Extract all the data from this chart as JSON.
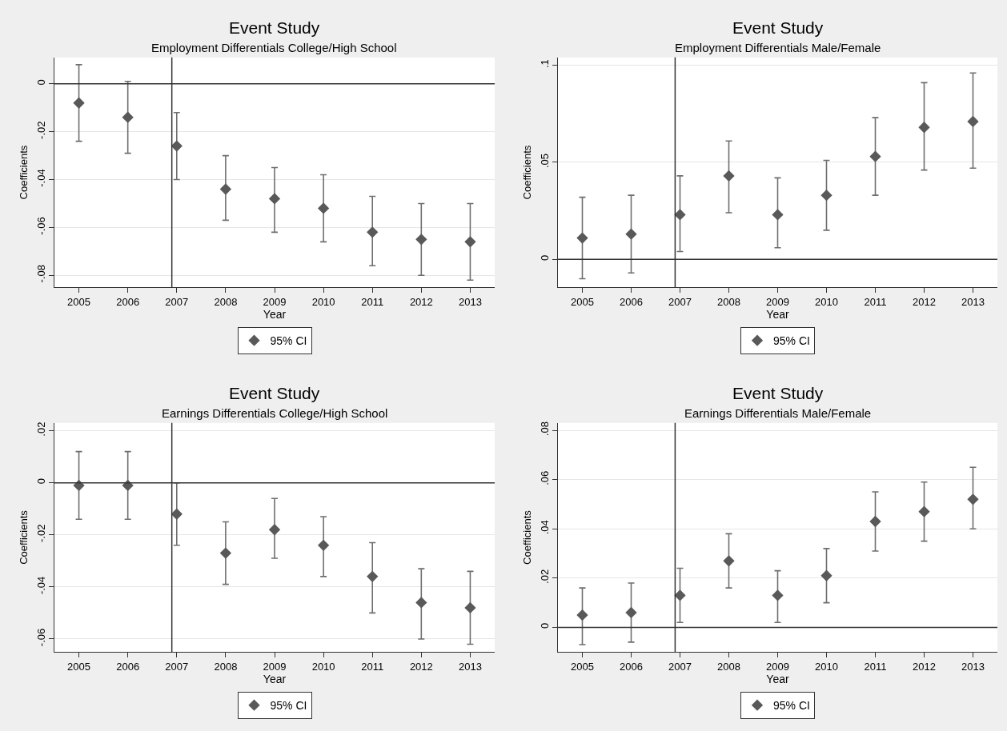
{
  "chart_data": [
    {
      "type": "scatter",
      "title": "Event Study",
      "subtitle": "Employment Differentials College/High School",
      "xlabel": "Year",
      "ylabel": "Coefficients",
      "x": [
        2005,
        2006,
        2007,
        2008,
        2009,
        2010,
        2011,
        2012,
        2013
      ],
      "xlim": [
        2004.5,
        2013.5
      ],
      "xticks": [
        2005,
        2006,
        2007,
        2008,
        2009,
        2010,
        2011,
        2012,
        2013
      ],
      "ylim": [
        -0.085,
        0.011
      ],
      "yticks": [
        {
          "value": -0.08,
          "label": "-.08"
        },
        {
          "value": -0.06,
          "label": "-.06"
        },
        {
          "value": -0.04,
          "label": "-.04"
        },
        {
          "value": -0.02,
          "label": "-.02"
        },
        0
      ],
      "series": [
        {
          "name": "95% CI",
          "color": "#595959",
          "values": [
            -0.008,
            -0.014,
            -0.026,
            -0.044,
            -0.048,
            -0.052,
            -0.062,
            -0.065,
            -0.066
          ],
          "errors": [
            [
              -0.024,
              0.008
            ],
            [
              -0.029,
              0.001
            ],
            [
              -0.04,
              -0.012
            ],
            [
              -0.057,
              -0.03
            ],
            [
              -0.062,
              -0.035
            ],
            [
              -0.066,
              -0.038
            ],
            [
              -0.076,
              -0.047
            ],
            [
              -0.08,
              -0.05
            ],
            [
              -0.082,
              -0.05
            ]
          ]
        }
      ],
      "ref_lines": [
        {
          "axis": "y",
          "value": 0
        },
        {
          "axis": "x",
          "value": 2006.9
        }
      ],
      "grid": "y",
      "legend": "bottom",
      "marker": "diamond"
    },
    {
      "type": "scatter",
      "title": "Event Study",
      "subtitle": "Employment Differentials Male/Female",
      "xlabel": "Year",
      "ylabel": "Coefficients",
      "x": [
        2005,
        2006,
        2007,
        2008,
        2009,
        2010,
        2011,
        2012,
        2013
      ],
      "xlim": [
        2004.5,
        2013.5
      ],
      "xticks": [
        2005,
        2006,
        2007,
        2008,
        2009,
        2010,
        2011,
        2012,
        2013
      ],
      "ylim": [
        -0.0144,
        0.104
      ],
      "yticks": [
        0,
        {
          "value": 0.05,
          "label": ".05"
        },
        {
          "value": 0.1,
          "label": ".1"
        }
      ],
      "series": [
        {
          "name": "95% CI",
          "color": "#595959",
          "values": [
            0.011,
            0.013,
            0.023,
            0.043,
            0.023,
            0.033,
            0.053,
            0.068,
            0.071
          ],
          "errors": [
            [
              -0.01,
              0.032
            ],
            [
              -0.007,
              0.033
            ],
            [
              0.004,
              0.043
            ],
            [
              0.024,
              0.061
            ],
            [
              0.006,
              0.042
            ],
            [
              0.015,
              0.051
            ],
            [
              0.033,
              0.073
            ],
            [
              0.046,
              0.091
            ],
            [
              0.047,
              0.096
            ]
          ]
        }
      ],
      "ref_lines": [
        {
          "axis": "y",
          "value": 0
        },
        {
          "axis": "x",
          "value": 2006.9
        }
      ],
      "grid": "y",
      "legend": "bottom",
      "marker": "diamond"
    },
    {
      "type": "scatter",
      "title": "Event Study",
      "subtitle": "Earnings Differentials College/High School",
      "xlabel": "Year",
      "ylabel": "Coefficients",
      "x": [
        2005,
        2006,
        2007,
        2008,
        2009,
        2010,
        2011,
        2012,
        2013
      ],
      "xlim": [
        2004.5,
        2013.5
      ],
      "xticks": [
        2005,
        2006,
        2007,
        2008,
        2009,
        2010,
        2011,
        2012,
        2013
      ],
      "ylim": [
        -0.065,
        0.023
      ],
      "yticks": [
        {
          "value": -0.06,
          "label": "-.06"
        },
        {
          "value": -0.04,
          "label": "-.04"
        },
        {
          "value": -0.02,
          "label": "-.02"
        },
        0,
        {
          "value": 0.02,
          "label": ".02"
        }
      ],
      "series": [
        {
          "name": "95% CI",
          "color": "#595959",
          "values": [
            -0.001,
            -0.001,
            -0.012,
            -0.027,
            -0.018,
            -0.024,
            -0.036,
            -0.046,
            -0.048
          ],
          "errors": [
            [
              -0.014,
              0.012
            ],
            [
              -0.014,
              0.012
            ],
            [
              -0.024,
              0.0
            ],
            [
              -0.039,
              -0.015
            ],
            [
              -0.029,
              -0.006
            ],
            [
              -0.036,
              -0.013
            ],
            [
              -0.05,
              -0.023
            ],
            [
              -0.06,
              -0.033
            ],
            [
              -0.062,
              -0.034
            ]
          ]
        }
      ],
      "ref_lines": [
        {
          "axis": "y",
          "value": 0
        },
        {
          "axis": "x",
          "value": 2006.9
        }
      ],
      "grid": "y",
      "legend": "bottom",
      "marker": "diamond"
    },
    {
      "type": "scatter",
      "title": "Event Study",
      "subtitle": "Earnings Differentials Male/Female",
      "xlabel": "Year",
      "ylabel": "Coefficients",
      "x": [
        2005,
        2006,
        2007,
        2008,
        2009,
        2010,
        2011,
        2012,
        2013
      ],
      "xlim": [
        2004.5,
        2013.5
      ],
      "xticks": [
        2005,
        2006,
        2007,
        2008,
        2009,
        2010,
        2011,
        2012,
        2013
      ],
      "ylim": [
        -0.01,
        0.083
      ],
      "yticks": [
        0,
        {
          "value": 0.02,
          "label": ".02"
        },
        {
          "value": 0.04,
          "label": ".04"
        },
        {
          "value": 0.06,
          "label": ".06"
        },
        {
          "value": 0.08,
          "label": ".08"
        }
      ],
      "series": [
        {
          "name": "95% CI",
          "color": "#595959",
          "values": [
            0.005,
            0.006,
            0.013,
            0.027,
            0.013,
            0.021,
            0.043,
            0.047,
            0.052
          ],
          "errors": [
            [
              -0.007,
              0.016
            ],
            [
              -0.006,
              0.018
            ],
            [
              0.002,
              0.024
            ],
            [
              0.016,
              0.038
            ],
            [
              0.002,
              0.023
            ],
            [
              0.01,
              0.032
            ],
            [
              0.031,
              0.055
            ],
            [
              0.035,
              0.059
            ],
            [
              0.04,
              0.065
            ]
          ]
        }
      ],
      "ref_lines": [
        {
          "axis": "y",
          "value": 0
        },
        {
          "axis": "x",
          "value": 2006.9
        }
      ],
      "grid": "y",
      "legend": "bottom",
      "marker": "diamond"
    }
  ]
}
